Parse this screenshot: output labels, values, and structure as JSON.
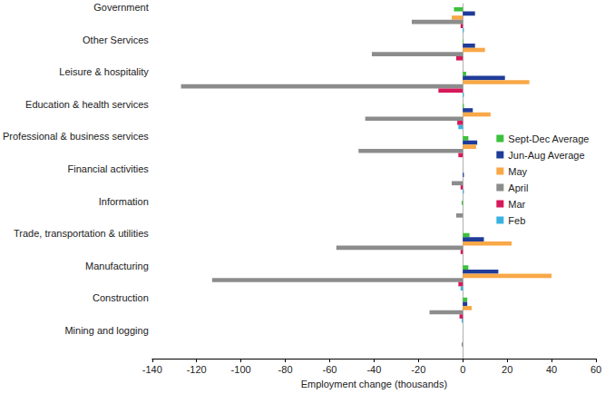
{
  "chart_data": {
    "type": "bar",
    "orientation": "horizontal",
    "xlabel": "Employment change (thousands)",
    "categories": [
      "Mining and logging",
      "Construction",
      "Manufacturing",
      "Trade, transportation & utilities",
      "Information",
      "Financial activities",
      "Professional & business services",
      "Education & health services",
      "Leisure & hospitality",
      "Other Services",
      "Government"
    ],
    "series": [
      {
        "name": "Sept-Dec Average",
        "color": "#3cc13c",
        "values": [
          0,
          2,
          2.5,
          3,
          -0.5,
          0,
          2.5,
          0.5,
          1.5,
          0.3,
          -4
        ]
      },
      {
        "name": "Jun-Aug Average",
        "color": "#1f3c99",
        "values": [
          0,
          2,
          16,
          9.5,
          0,
          0.5,
          6.5,
          4.5,
          19,
          5.5,
          5.5
        ]
      },
      {
        "name": "May",
        "color": "#f8a847",
        "values": [
          0,
          4,
          40,
          22,
          0,
          0,
          6,
          12.5,
          30,
          10,
          -5
        ]
      },
      {
        "name": "April",
        "color": "#8c8c8c",
        "values": [
          -0.5,
          -15,
          -113,
          -57,
          -3,
          -5,
          -47,
          -44,
          -127,
          -41,
          -23
        ]
      },
      {
        "name": "Mar",
        "color": "#d6195a",
        "values": [
          0,
          -1.5,
          -2,
          -1,
          0,
          -1,
          -2,
          -2.5,
          -11,
          -3,
          -1
        ]
      },
      {
        "name": "Feb",
        "color": "#3ab3e0",
        "values": [
          0,
          -0.5,
          -1,
          0,
          0,
          0.5,
          0,
          -2,
          0.5,
          0,
          0.5
        ]
      }
    ],
    "xlim": [
      -140,
      60
    ],
    "xticks": [
      -140,
      -120,
      -100,
      -80,
      -60,
      -40,
      -20,
      0,
      20,
      40,
      60
    ],
    "legend": "right",
    "grid": false
  }
}
